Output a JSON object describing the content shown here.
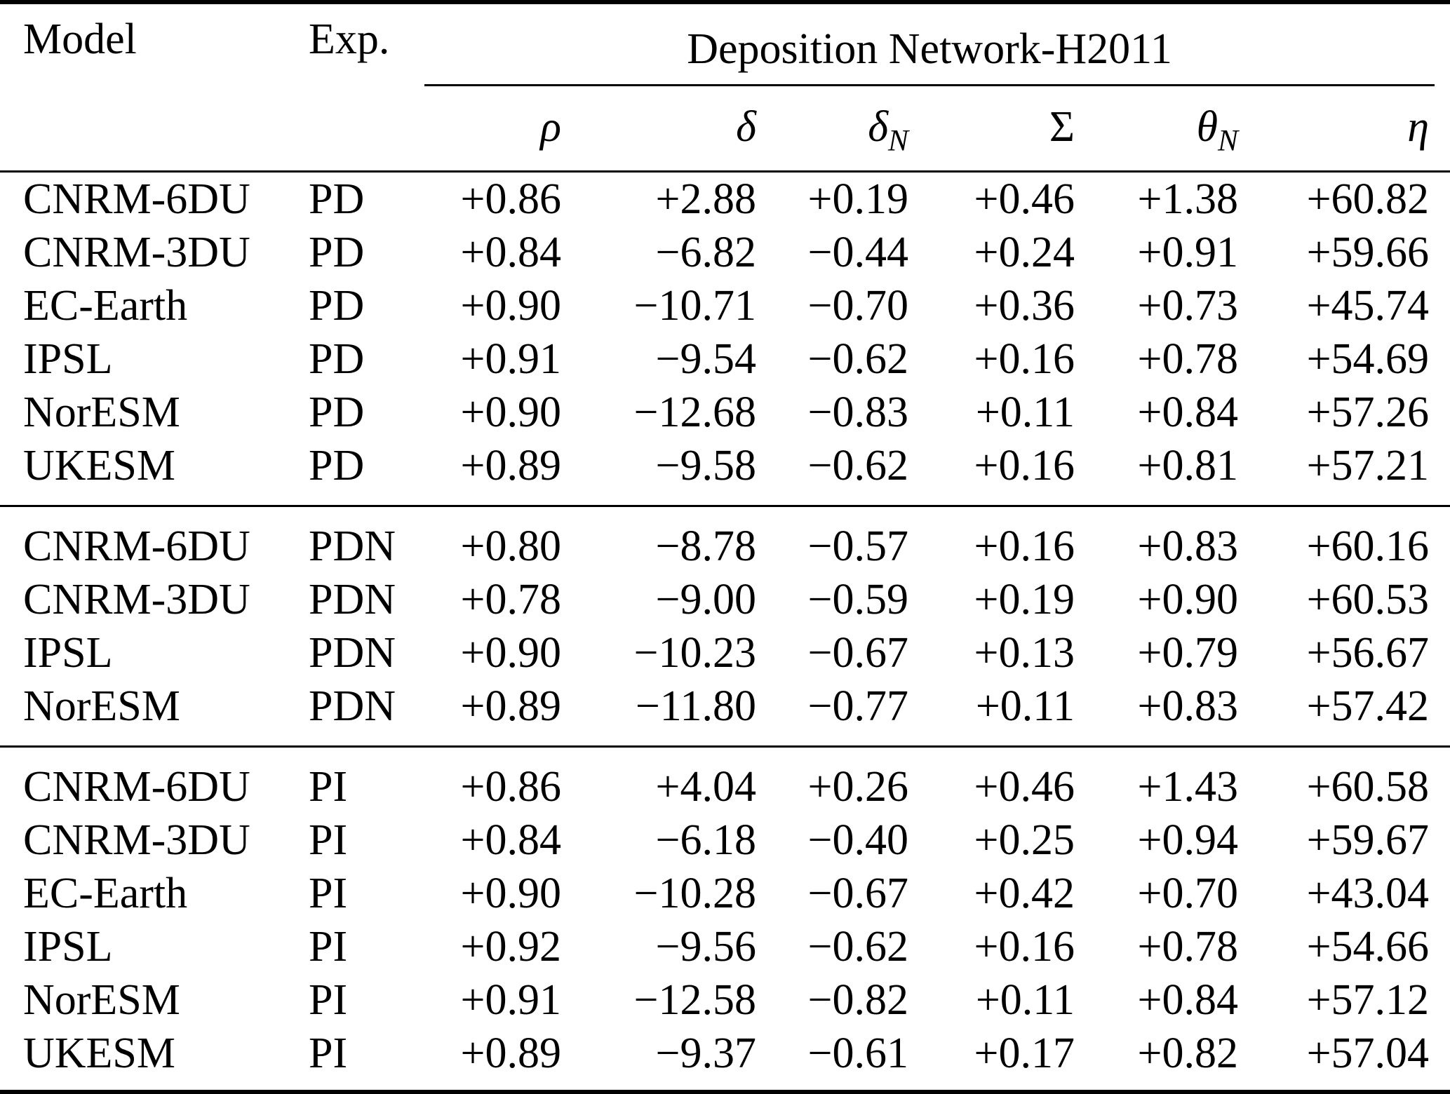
{
  "table": {
    "header": {
      "model": "Model",
      "exp": "Exp.",
      "group": "Deposition Network-H2011",
      "metrics": [
        {
          "id": "rho",
          "base": "ρ",
          "sub": "",
          "italic": true
        },
        {
          "id": "delta",
          "base": "δ",
          "sub": "",
          "italic": true
        },
        {
          "id": "delta-n",
          "base": "δ",
          "sub": "N",
          "italic": true
        },
        {
          "id": "sigma",
          "base": "Σ",
          "sub": "",
          "italic": false
        },
        {
          "id": "theta-n",
          "base": "θ",
          "sub": "N",
          "italic": true
        },
        {
          "id": "eta",
          "base": "η",
          "sub": "",
          "italic": true
        }
      ]
    },
    "blocks": [
      {
        "experiment": "PD",
        "rows": [
          {
            "model": "CNRM-6DU",
            "exp": "PD",
            "values": [
              "+0.86",
              "+2.88",
              "+0.19",
              "+0.46",
              "+1.38",
              "+60.82"
            ]
          },
          {
            "model": "CNRM-3DU",
            "exp": "PD",
            "values": [
              "+0.84",
              "−6.82",
              "−0.44",
              "+0.24",
              "+0.91",
              "+59.66"
            ]
          },
          {
            "model": "EC-Earth",
            "exp": "PD",
            "values": [
              "+0.90",
              "−10.71",
              "−0.70",
              "+0.36",
              "+0.73",
              "+45.74"
            ]
          },
          {
            "model": "IPSL",
            "exp": "PD",
            "values": [
              "+0.91",
              "−9.54",
              "−0.62",
              "+0.16",
              "+0.78",
              "+54.69"
            ]
          },
          {
            "model": "NorESM",
            "exp": "PD",
            "values": [
              "+0.90",
              "−12.68",
              "−0.83",
              "+0.11",
              "+0.84",
              "+57.26"
            ]
          },
          {
            "model": "UKESM",
            "exp": "PD",
            "values": [
              "+0.89",
              "−9.58",
              "−0.62",
              "+0.16",
              "+0.81",
              "+57.21"
            ]
          }
        ]
      },
      {
        "experiment": "PDN",
        "rows": [
          {
            "model": "CNRM-6DU",
            "exp": "PDN",
            "values": [
              "+0.80",
              "−8.78",
              "−0.57",
              "+0.16",
              "+0.83",
              "+60.16"
            ]
          },
          {
            "model": "CNRM-3DU",
            "exp": "PDN",
            "values": [
              "+0.78",
              "−9.00",
              "−0.59",
              "+0.19",
              "+0.90",
              "+60.53"
            ]
          },
          {
            "model": "IPSL",
            "exp": "PDN",
            "values": [
              "+0.90",
              "−10.23",
              "−0.67",
              "+0.13",
              "+0.79",
              "+56.67"
            ]
          },
          {
            "model": "NorESM",
            "exp": "PDN",
            "values": [
              "+0.89",
              "−11.80",
              "−0.77",
              "+0.11",
              "+0.83",
              "+57.42"
            ]
          }
        ]
      },
      {
        "experiment": "PI",
        "rows": [
          {
            "model": "CNRM-6DU",
            "exp": "PI",
            "values": [
              "+0.86",
              "+4.04",
              "+0.26",
              "+0.46",
              "+1.43",
              "+60.58"
            ]
          },
          {
            "model": "CNRM-3DU",
            "exp": "PI",
            "values": [
              "+0.84",
              "−6.18",
              "−0.40",
              "+0.25",
              "+0.94",
              "+59.67"
            ]
          },
          {
            "model": "EC-Earth",
            "exp": "PI",
            "values": [
              "+0.90",
              "−10.28",
              "−0.67",
              "+0.42",
              "+0.70",
              "+43.04"
            ]
          },
          {
            "model": "IPSL",
            "exp": "PI",
            "values": [
              "+0.92",
              "−9.56",
              "−0.62",
              "+0.16",
              "+0.78",
              "+54.66"
            ]
          },
          {
            "model": "NorESM",
            "exp": "PI",
            "values": [
              "+0.91",
              "−12.58",
              "−0.82",
              "+0.11",
              "+0.84",
              "+57.12"
            ]
          },
          {
            "model": "UKESM",
            "exp": "PI",
            "values": [
              "+0.89",
              "−9.37",
              "−0.61",
              "+0.17",
              "+0.82",
              "+57.04"
            ]
          }
        ]
      }
    ]
  },
  "colors": {
    "text": "#000000",
    "background": "#ffffff",
    "rule": "#000000"
  }
}
